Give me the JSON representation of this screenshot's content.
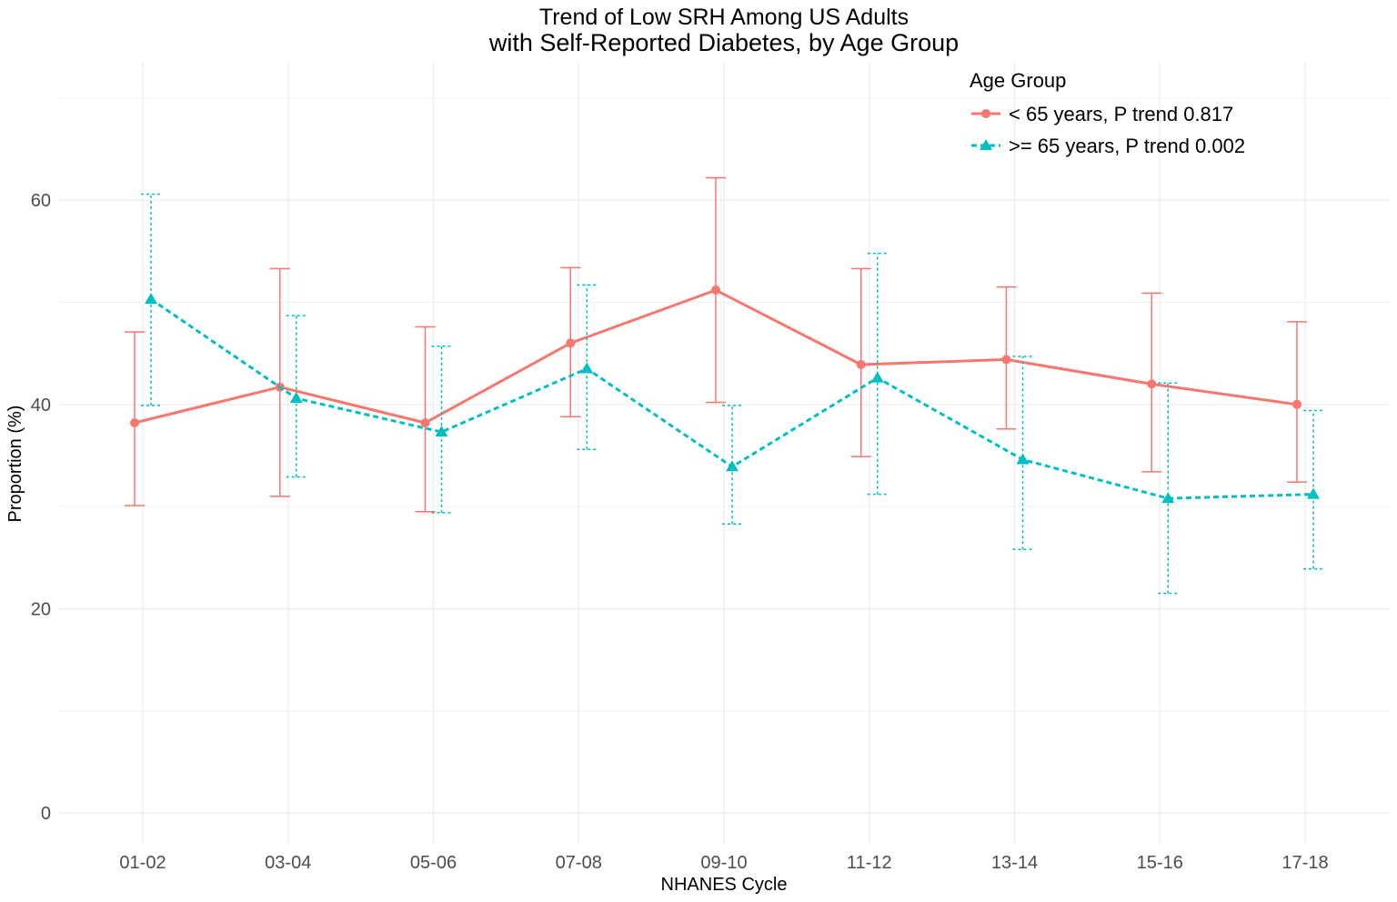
{
  "chart_data": {
    "type": "line",
    "title_line1": "Trend of Low SRH Among US Adults",
    "title_line2": "with Self-Reported Diabetes, by Age Group",
    "xlabel": "NHANES Cycle",
    "ylabel": "Proportion (%)",
    "ylim": [
      -3,
      73
    ],
    "yticks": [
      0,
      20,
      40,
      60
    ],
    "grid": true,
    "categories": [
      "01-02",
      "03-04",
      "05-06",
      "07-08",
      "09-10",
      "11-12",
      "13-14",
      "15-16",
      "17-18"
    ],
    "legend": {
      "title": "Age Group",
      "position": "top-right"
    },
    "series": [
      {
        "name": "< 65 years, P trend 0.817",
        "color": "#F8766D",
        "marker": "circle",
        "linestyle": "solid",
        "values": [
          38.2,
          41.7,
          38.2,
          46.0,
          51.2,
          43.9,
          44.4,
          42.0,
          40.0
        ],
        "lower": [
          30.1,
          31.0,
          29.5,
          38.8,
          40.2,
          34.9,
          37.6,
          33.4,
          32.4
        ],
        "upper": [
          47.1,
          53.3,
          47.6,
          53.4,
          62.2,
          53.3,
          51.5,
          50.9,
          48.1
        ]
      },
      {
        "name": ">= 65 years, P trend 0.002",
        "color": "#00BFC4",
        "marker": "triangle",
        "linestyle": "dashed",
        "values": [
          50.3,
          40.6,
          37.3,
          43.5,
          33.9,
          42.6,
          34.6,
          30.8,
          31.2
        ],
        "lower": [
          39.9,
          32.9,
          29.4,
          35.6,
          28.3,
          31.2,
          25.8,
          21.5,
          23.9
        ],
        "upper": [
          60.6,
          48.7,
          45.7,
          51.7,
          39.9,
          54.8,
          44.7,
          42.1,
          39.4
        ]
      }
    ]
  }
}
